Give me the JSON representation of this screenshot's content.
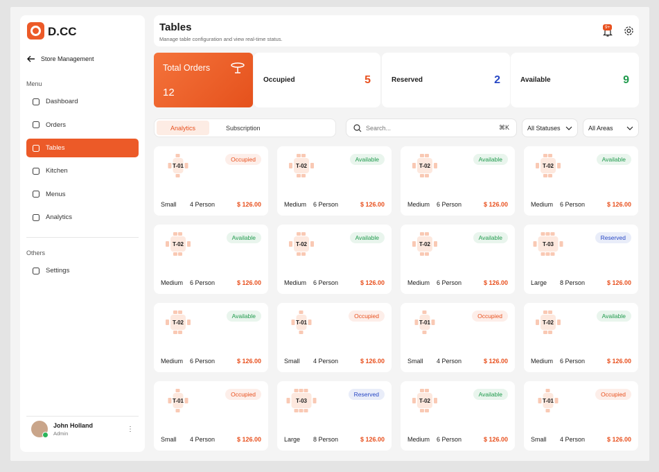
{
  "brand": "D.CC",
  "nav": {
    "back": "Store Management",
    "menu_label": "Menu",
    "items": [
      "Dashboard",
      "Orders",
      "Tables",
      "Kitchen",
      "Menus",
      "Analytics"
    ],
    "active_item": 2,
    "others_label": "Others",
    "others_items": [
      "Settings"
    ]
  },
  "user": {
    "name": "John Holland",
    "role": "Admin"
  },
  "header": {
    "title": "Tables",
    "subtitle": "Manage table configuration and view real-time status.",
    "notification_badge": "9+"
  },
  "stats": {
    "total": {
      "label": "Total Orders",
      "value": 12
    },
    "cards": [
      {
        "label": "Occupied",
        "value": 5,
        "color": "#e8501e"
      },
      {
        "label": "Reserved",
        "value": 2,
        "color": "#2747c4"
      },
      {
        "label": "Available",
        "value": 9,
        "color": "#1f9a4c"
      }
    ]
  },
  "tabs": [
    "Analytics",
    "Subscription"
  ],
  "active_tab": 0,
  "search": {
    "placeholder": "Search...",
    "shortcut": "⌘K"
  },
  "filters": [
    "All Statuses",
    "All Areas"
  ],
  "tables": [
    {
      "id": "T-01",
      "status": "Occupied",
      "size": "Small",
      "capacity": "4 Person",
      "price": "$ 126.00"
    },
    {
      "id": "T-02",
      "status": "Available",
      "size": "Medium",
      "capacity": "6 Person",
      "price": "$ 126.00"
    },
    {
      "id": "T-02",
      "status": "Available",
      "size": "Medium",
      "capacity": "6 Person",
      "price": "$ 126.00"
    },
    {
      "id": "T-02",
      "status": "Available",
      "size": "Medium",
      "capacity": "6 Person",
      "price": "$ 126.00"
    },
    {
      "id": "T-02",
      "status": "Available",
      "size": "Medium",
      "capacity": "6 Person",
      "price": "$ 126.00"
    },
    {
      "id": "T-02",
      "status": "Available",
      "size": "Medium",
      "capacity": "6 Person",
      "price": "$ 126.00"
    },
    {
      "id": "T-02",
      "status": "Available",
      "size": "Medium",
      "capacity": "6 Person",
      "price": "$ 126.00"
    },
    {
      "id": "T-03",
      "status": "Reserved",
      "size": "Large",
      "capacity": "8 Person",
      "price": "$ 126.00"
    },
    {
      "id": "T-02",
      "status": "Available",
      "size": "Medium",
      "capacity": "6 Person",
      "price": "$ 126.00"
    },
    {
      "id": "T-01",
      "status": "Occupied",
      "size": "Small",
      "capacity": "4 Person",
      "price": "$ 126.00"
    },
    {
      "id": "T-01",
      "status": "Occupied",
      "size": "Small",
      "capacity": "4 Person",
      "price": "$ 126.00"
    },
    {
      "id": "T-02",
      "status": "Available",
      "size": "Medium",
      "capacity": "6 Person",
      "price": "$ 126.00"
    },
    {
      "id": "T-01",
      "status": "Occupied",
      "size": "Small",
      "capacity": "4 Person",
      "price": "$ 126.00"
    },
    {
      "id": "T-03",
      "status": "Reserved",
      "size": "Large",
      "capacity": "8 Person",
      "price": "$ 126.00"
    },
    {
      "id": "T-02",
      "status": "Available",
      "size": "Medium",
      "capacity": "6 Person",
      "price": "$ 126.00"
    },
    {
      "id": "T-01",
      "status": "Occupied",
      "size": "Small",
      "capacity": "4 Person",
      "price": "$ 126.00"
    }
  ]
}
